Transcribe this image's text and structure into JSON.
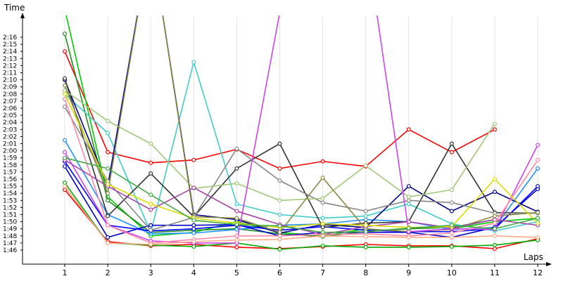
{
  "chart_data": {
    "type": "line",
    "xlabel": "Laps",
    "ylabel": "Time",
    "x": [
      1,
      2,
      3,
      4,
      5,
      6,
      7,
      8,
      9,
      10,
      11,
      12
    ],
    "xlim": [
      0,
      12
    ],
    "ylim_seconds": [
      103,
      140
    ],
    "yticks": [
      "1:46",
      "1:47",
      "1:48",
      "1:49",
      "1:50",
      "1:51",
      "1:52",
      "1:53",
      "1:54",
      "1:55",
      "1:56",
      "1:57",
      "1:58",
      "1:59",
      "2:00",
      "2:01",
      "2:02",
      "2:03",
      "2:04",
      "2:05",
      "2:06",
      "2:07",
      "2:08",
      "2:09",
      "2:10",
      "2:11",
      "2:12",
      "2:13",
      "2:14",
      "2:15",
      "2:16"
    ],
    "grid": "vertical",
    "series": [
      {
        "color": "#ff0000",
        "values": [
          134.0,
          119.8,
          118.3,
          118.7,
          120.2,
          117.5,
          118.5,
          117.8,
          123.0,
          119.8,
          123.0,
          null
        ]
      },
      {
        "color": "#ff0000",
        "values": [
          114.5,
          107.2,
          106.6,
          106.8,
          106.4,
          106.2,
          106.5,
          106.8,
          106.6,
          106.6,
          106.2,
          107.6
        ]
      },
      {
        "color": "#00aa00",
        "values": [
          115.5,
          107.0,
          106.7,
          106.5,
          107.0,
          106.1,
          106.6,
          106.4,
          106.4,
          106.5,
          106.7,
          107.4
        ]
      },
      {
        "color": "#00cc00",
        "values": [
          140.0,
          113.5,
          108.0,
          108.5,
          110.0,
          108.5,
          108.0,
          109.0,
          108.5,
          109.0,
          110.0,
          110.5
        ]
      },
      {
        "color": "#228b22",
        "values": [
          136.5,
          113.0,
          108.5,
          108.8,
          109.0,
          108.3,
          107.9,
          108.6,
          109.0,
          109.2,
          110.3,
          null
        ]
      },
      {
        "color": "#1e90ff",
        "values": [
          121.5,
          111.0,
          108.3,
          108.4,
          108.9,
          109.5,
          109.7,
          110.3,
          110.0,
          108.9,
          109.2,
          117.5
        ]
      },
      {
        "color": "#40cccc",
        "values": [
          128.0,
          122.5,
          108.5,
          132.5,
          112.5,
          111.0,
          110.5,
          110.8,
          112.5,
          109.7,
          108.7,
          110.0
        ]
      },
      {
        "color": "#0000cc",
        "values": [
          117.8,
          107.8,
          109.5,
          109.5,
          109.6,
          108.0,
          108.5,
          108.5,
          108.5,
          107.8,
          109.2,
          114.6
        ]
      },
      {
        "color": "#000088",
        "values": [
          130.0,
          115.0,
          150.0,
          111.0,
          110.3,
          108.4,
          109.6,
          109.2,
          115.0,
          111.5,
          114.2,
          111.4
        ]
      },
      {
        "color": "#0000ff",
        "values": [
          118.5,
          109.5,
          108.7,
          109.0,
          109.5,
          108.8,
          109.3,
          108.8,
          108.6,
          108.6,
          109.0,
          115.0
        ]
      },
      {
        "color": "#333333",
        "values": [
          130.2,
          110.8,
          116.8,
          110.7,
          117.5,
          121.0,
          109.2,
          109.8,
          110.0,
          121.0,
          111.3,
          111.2
        ]
      },
      {
        "color": "#888888",
        "values": [
          126.2,
          115.7,
          108.8,
          110.6,
          120.3,
          115.8,
          112.7,
          111.5,
          113.0,
          112.7,
          111.2,
          111.2
        ]
      },
      {
        "color": "#a0c878",
        "values": [
          128.5,
          124.2,
          121.0,
          114.7,
          115.4,
          113.0,
          113.3,
          117.9,
          113.5,
          114.5,
          123.8,
          null
        ]
      },
      {
        "color": "#888844",
        "values": [
          129.2,
          114.0,
          150.0,
          110.7,
          110.5,
          108.5,
          116.2,
          109.0,
          108.6,
          108.9,
          110.8,
          111.3
        ]
      },
      {
        "color": "#cc44ee",
        "values": [
          119.8,
          109.5,
          107.3,
          107.0,
          107.0,
          139.5,
          150.0,
          150.0,
          108.6,
          109.0,
          108.9,
          120.8
        ]
      },
      {
        "color": "#aa44aa",
        "values": [
          118.7,
          115.0,
          111.7,
          114.8,
          111.5,
          109.6,
          108.2,
          109.3,
          110.0,
          109.1,
          110.3,
          109.5
        ]
      },
      {
        "color": "#ff88aa",
        "values": [
          127.3,
          109.5,
          107.0,
          107.5,
          108.0,
          108.0,
          108.2,
          108.3,
          108.0,
          108.4,
          109.8,
          118.7
        ]
      },
      {
        "color": "#dddd00",
        "values": [
          128.0,
          115.3,
          112.5,
          110.5,
          109.8,
          109.2,
          109.7,
          109.5,
          109.2,
          109.3,
          116.0,
          109.8
        ]
      },
      {
        "color": "#ffaa88",
        "values": [
          115.0,
          107.0,
          106.8,
          107.2,
          107.4,
          107.5,
          108.0,
          107.9,
          107.8,
          107.8,
          108.0,
          107.8
        ]
      },
      {
        "color": "#44aa44",
        "values": [
          119.0,
          117.5,
          113.8,
          110.2,
          109.6,
          109.4,
          108.5,
          108.6,
          109.1,
          109.5,
          109.0,
          110.5
        ]
      }
    ]
  }
}
